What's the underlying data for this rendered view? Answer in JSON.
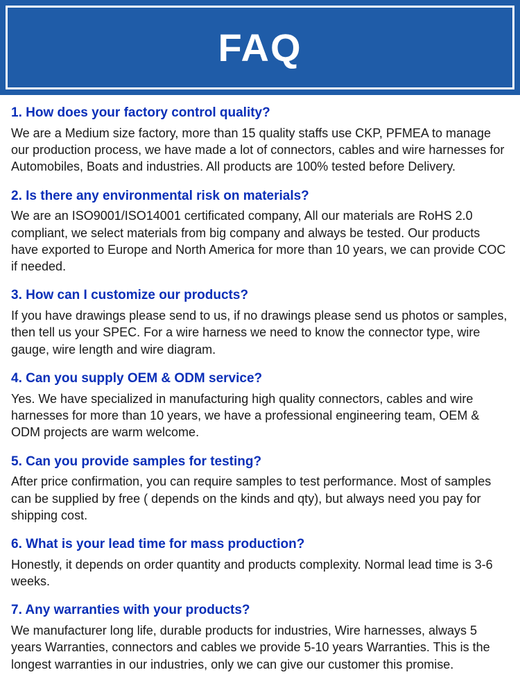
{
  "header": {
    "title": "FAQ"
  },
  "faq": [
    {
      "question": "1. How does your factory control quality?",
      "answer": "We are a Medium size factory, more than 15 quality staffs use CKP, PFMEA to manage our production process, we have made a lot of connectors, cables and wire harnesses for Automobiles, Boats and industries. All products are 100% tested before Delivery."
    },
    {
      "question": "2. Is there any environmental risk on materials?",
      "answer": "We are an ISO9001/ISO14001 certificated company, All our materials are RoHS 2.0 compliant, we select materials from big company and always be tested. Our products have exported to Europe and North America for more than 10 years, we can provide COC if needed."
    },
    {
      "question": "3. How can I customize our products?",
      "answer": "If you have drawings please send to us, if no drawings please send us photos or samples, then tell us your SPEC. For a wire harness we need to know the connector type, wire gauge, wire length and wire diagram."
    },
    {
      "question": "4. Can you supply OEM & ODM service?",
      "answer": "Yes. We have specialized in manufacturing high quality connectors, cables and wire harnesses for more than 10 years, we have a professional engineering team, OEM & ODM projects are warm welcome."
    },
    {
      "question": "5. Can you provide samples for testing?",
      "answer": "After price confirmation, you can require samples to test performance. Most of samples can be supplied by free ( depends on the kinds and qty), but always need you pay for shipping cost."
    },
    {
      "question": "6. What is your lead time for mass production?",
      "answer": "Honestly, it depends on order quantity and products complexity. Normal lead time is 3-6 weeks."
    },
    {
      "question": "7. Any warranties with your products?",
      "answer": "We manufacturer long life, durable products for industries, Wire harnesses, always 5 years Warranties, connectors and cables we provide 5-10 years Warranties. This is the longest warranties in our industries, only we can give our customer this promise."
    }
  ]
}
